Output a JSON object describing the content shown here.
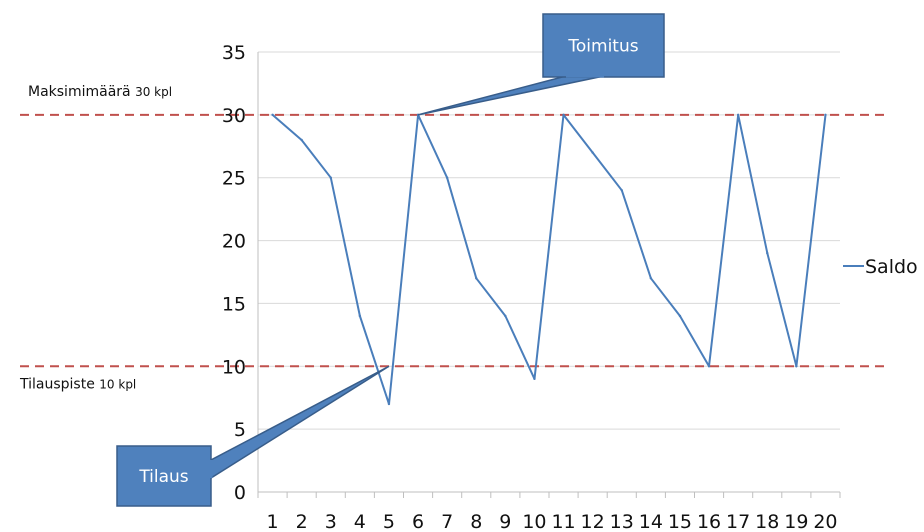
{
  "chart_data": {
    "type": "line",
    "x": [
      1,
      2,
      3,
      4,
      5,
      6,
      7,
      8,
      9,
      10,
      11,
      12,
      13,
      14,
      15,
      16,
      17,
      18,
      19,
      20
    ],
    "series": [
      {
        "name": "Saldo",
        "values": [
          30,
          28,
          25,
          14,
          7,
          30,
          25,
          17,
          14,
          9,
          30,
          27,
          24,
          17,
          14,
          10,
          30,
          19,
          10,
          30
        ]
      }
    ],
    "ylim": [
      0,
      35
    ],
    "yticks": [
      0,
      5,
      10,
      15,
      20,
      25,
      30,
      35
    ],
    "grid": true,
    "legend": "right",
    "colors": {
      "line": "#4a7ebb",
      "reference": "#c0504d",
      "callout": "#4f81bd",
      "grid": "#d9d9d9"
    },
    "reference_lines": [
      {
        "value": 30,
        "label_main": "Maksimimäärä",
        "label_small": "30 kpl"
      },
      {
        "value": 10,
        "label_main": "Tilauspiste",
        "label_small": "10 kpl"
      }
    ],
    "callouts": [
      {
        "text": "Toimitus",
        "anchor_x": 6,
        "anchor_y": 30
      },
      {
        "text": "Tilaus",
        "anchor_x": 5,
        "anchor_y": 10
      }
    ]
  }
}
